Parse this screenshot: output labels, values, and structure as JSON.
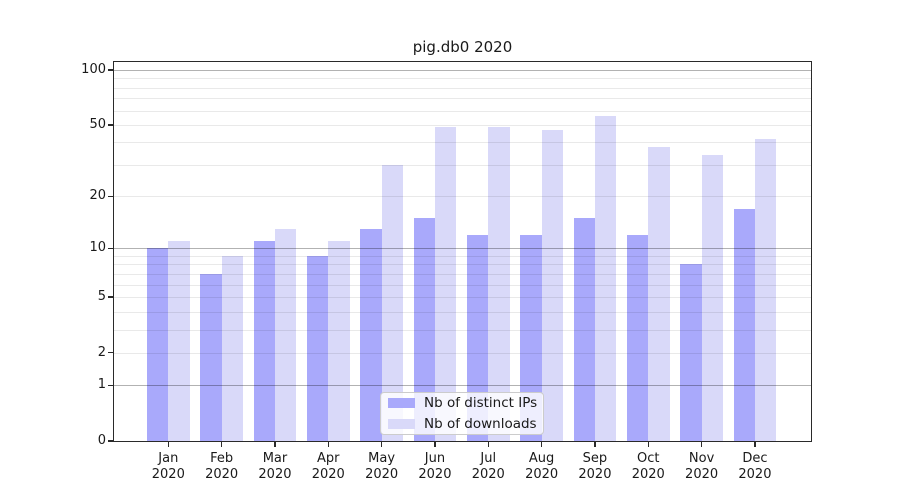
{
  "title": "pig.db0 2020",
  "chart_data": {
    "type": "bar",
    "title": "pig.db0 2020",
    "categories": [
      "Jan 2020",
      "Feb 2020",
      "Mar 2020",
      "Apr 2020",
      "May 2020",
      "Jun 2020",
      "Jul 2020",
      "Aug 2020",
      "Sep 2020",
      "Oct 2020",
      "Nov 2020",
      "Dec 2020"
    ],
    "series": [
      {
        "name": "Nb of distinct IPs",
        "color": "#a9a9fb",
        "values": [
          10,
          7,
          11,
          9,
          13,
          15,
          12,
          12,
          15,
          12,
          8,
          17
        ]
      },
      {
        "name": "Nb of downloads",
        "color": "#d9d9f9",
        "values": [
          11,
          9,
          13,
          11,
          30,
          49,
          49,
          47,
          56,
          38,
          34,
          42
        ]
      }
    ],
    "ylabel": "",
    "xlabel": "",
    "yscale": "log1p",
    "ylim": [
      0,
      110
    ],
    "yticks": [
      0,
      1,
      2,
      5,
      10,
      20,
      50,
      100
    ],
    "grid_major_values": [
      1,
      10,
      100
    ],
    "grid_minor_values": [
      2,
      3,
      4,
      5,
      6,
      7,
      8,
      9,
      20,
      30,
      40,
      50,
      60,
      70,
      80,
      90
    ],
    "legend_position": "lower center",
    "grid": true
  }
}
